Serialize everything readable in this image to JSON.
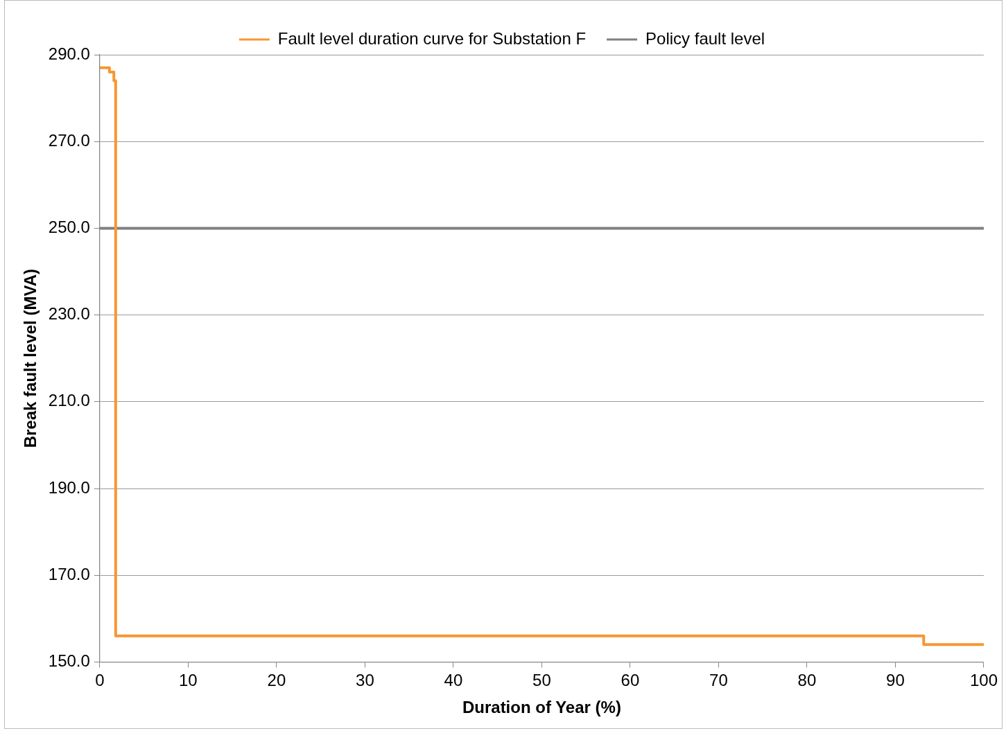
{
  "chart_data": {
    "type": "step",
    "xlabel": "Duration of Year (%)",
    "ylabel": "Break fault level (MVA)",
    "series": [
      {
        "name": "Fault level duration curve for Substation F",
        "color": "#f79633",
        "x": [
          0,
          1.1,
          1.6,
          1.8,
          93.2,
          100
        ],
        "values": [
          287,
          286,
          284,
          156,
          154,
          154
        ]
      },
      {
        "name": "Policy fault level",
        "color": "#808080",
        "type": "line",
        "x": [
          0,
          100
        ],
        "values": [
          250,
          250
        ]
      }
    ],
    "xlim": [
      0,
      100
    ],
    "xticks": [
      0,
      10,
      20,
      30,
      40,
      50,
      60,
      70,
      80,
      90,
      100
    ],
    "ylim": [
      150,
      290
    ],
    "yticks": [
      {
        "value": 150,
        "label": "150.0"
      },
      {
        "value": 170,
        "label": "170.0"
      },
      {
        "value": 190,
        "label": "190.0"
      },
      {
        "value": 210,
        "label": "210.0"
      },
      {
        "value": 230,
        "label": "230.0"
      },
      {
        "value": 250,
        "label": "250.0"
      },
      {
        "value": 270,
        "label": "270.0"
      },
      {
        "value": 290,
        "label": "290.0"
      }
    ],
    "grid": "y",
    "legend": "top",
    "marker": "none",
    "line_style": "solid"
  }
}
